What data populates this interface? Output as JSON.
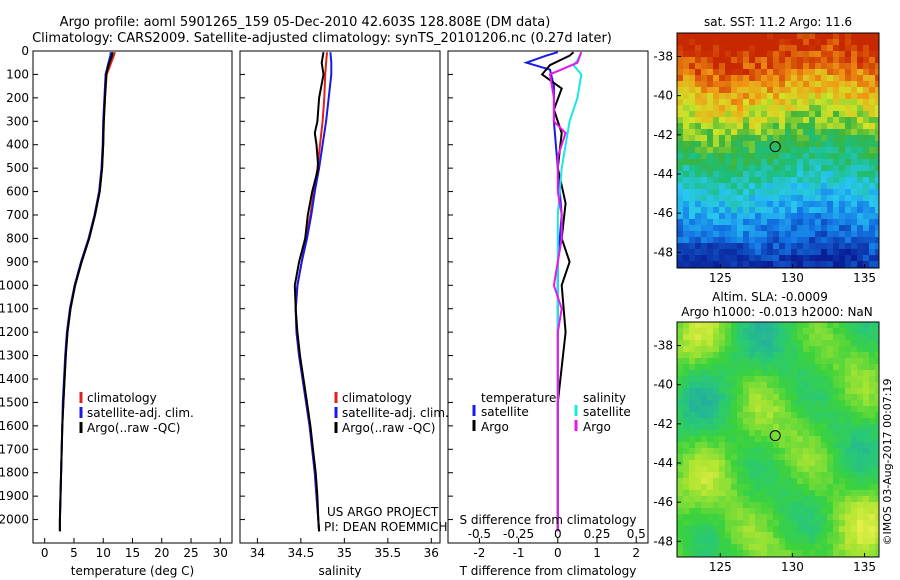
{
  "header": {
    "title_line1": "Argo profile: aoml 5901265_159 05-Dec-2010 42.603S 128.808E (DM data)",
    "title_line2": "Climatology: CARS2009. Satellite-adjusted climatology: synTS_20101206.nc (0.27d later)"
  },
  "colors": {
    "climatology": "#e0201a",
    "satellite": "#1a1ae6",
    "argo": "#000000",
    "sat_salinity": "#19e6e6",
    "argo_salinity": "#e619e6"
  },
  "chart_data": [
    {
      "type": "line",
      "id": "temperature",
      "xlabel": "temperature (deg C)",
      "ylabel": "",
      "xlim": [
        -2,
        32
      ],
      "ylim": [
        2100,
        0
      ],
      "xticks": [
        0,
        5,
        10,
        15,
        20,
        25,
        30
      ],
      "yticks": [
        0,
        100,
        200,
        300,
        400,
        500,
        600,
        700,
        800,
        900,
        1000,
        1100,
        1200,
        1300,
        1400,
        1500,
        1600,
        1700,
        1800,
        1900,
        2000
      ],
      "legend": [
        "climatology",
        "satellite-adj. clim.",
        "Argo(..raw -QC)"
      ],
      "series": [
        {
          "name": "climatology",
          "color": "climatology",
          "points": [
            [
              12.0,
              5
            ],
            [
              11.8,
              20
            ],
            [
              11.5,
              40
            ],
            [
              11.2,
              60
            ],
            [
              10.6,
              100
            ],
            [
              10.3,
              200
            ],
            [
              10.1,
              300
            ],
            [
              10.0,
              400
            ],
            [
              9.8,
              500
            ],
            [
              9.4,
              600
            ],
            [
              8.6,
              700
            ],
            [
              7.6,
              800
            ],
            [
              6.3,
              900
            ],
            [
              5.2,
              1000
            ],
            [
              4.4,
              1100
            ],
            [
              3.9,
              1200
            ],
            [
              3.6,
              1300
            ],
            [
              3.4,
              1400
            ],
            [
              3.2,
              1500
            ],
            [
              3.0,
              1600
            ],
            [
              2.9,
              1700
            ],
            [
              2.8,
              1800
            ],
            [
              2.7,
              1900
            ],
            [
              2.6,
              2000
            ],
            [
              2.6,
              2050
            ]
          ]
        },
        {
          "name": "satellite-adj. clim.",
          "color": "satellite",
          "points": [
            [
              11.3,
              5
            ],
            [
              11.2,
              20
            ],
            [
              11.0,
              40
            ],
            [
              10.8,
              60
            ],
            [
              10.4,
              100
            ],
            [
              10.2,
              200
            ],
            [
              10.0,
              300
            ],
            [
              9.9,
              400
            ],
            [
              9.7,
              500
            ],
            [
              9.3,
              600
            ],
            [
              8.5,
              700
            ],
            [
              7.5,
              800
            ],
            [
              6.2,
              900
            ],
            [
              5.1,
              1000
            ],
            [
              4.3,
              1100
            ],
            [
              3.8,
              1200
            ],
            [
              3.5,
              1300
            ],
            [
              3.3,
              1400
            ],
            [
              3.1,
              1500
            ],
            [
              3.0,
              1600
            ],
            [
              2.9,
              1700
            ],
            [
              2.8,
              1800
            ],
            [
              2.7,
              1900
            ],
            [
              2.6,
              2000
            ],
            [
              2.6,
              2050
            ]
          ]
        },
        {
          "name": "Argo(..raw -QC)",
          "color": "argo",
          "points": [
            [
              11.6,
              5
            ],
            [
              11.5,
              20
            ],
            [
              11.2,
              40
            ],
            [
              10.9,
              60
            ],
            [
              10.5,
              100
            ],
            [
              10.3,
              200
            ],
            [
              10.1,
              300
            ],
            [
              10.0,
              400
            ],
            [
              9.8,
              500
            ],
            [
              9.4,
              600
            ],
            [
              8.6,
              700
            ],
            [
              7.6,
              800
            ],
            [
              6.3,
              900
            ],
            [
              5.2,
              1000
            ],
            [
              4.4,
              1100
            ],
            [
              3.9,
              1200
            ],
            [
              3.6,
              1300
            ],
            [
              3.4,
              1400
            ],
            [
              3.2,
              1500
            ],
            [
              3.0,
              1600
            ],
            [
              2.9,
              1700
            ],
            [
              2.8,
              1800
            ],
            [
              2.7,
              1900
            ],
            [
              2.6,
              2000
            ],
            [
              2.6,
              2050
            ]
          ]
        }
      ]
    },
    {
      "type": "line",
      "id": "salinity",
      "xlabel": "salinity",
      "xlim": [
        33.8,
        36.1
      ],
      "ylim": [
        2100,
        0
      ],
      "xticks": [
        34,
        34.5,
        35,
        35.5,
        36
      ],
      "legend": [
        "climatology",
        "satellite-adj. clim.",
        "Argo(..raw -QC)"
      ],
      "annotation": [
        "US ARGO PROJECT",
        "PI: DEAN ROEMMICH"
      ],
      "series": [
        {
          "name": "climatology",
          "color": "climatology",
          "points": [
            [
              34.8,
              5
            ],
            [
              34.79,
              50
            ],
            [
              34.78,
              100
            ],
            [
              34.77,
              200
            ],
            [
              34.75,
              300
            ],
            [
              34.72,
              400
            ],
            [
              34.69,
              500
            ],
            [
              34.65,
              600
            ],
            [
              34.61,
              700
            ],
            [
              34.56,
              800
            ],
            [
              34.51,
              900
            ],
            [
              34.46,
              1000
            ],
            [
              34.44,
              1100
            ],
            [
              34.45,
              1200
            ],
            [
              34.48,
              1300
            ],
            [
              34.52,
              1400
            ],
            [
              34.56,
              1500
            ],
            [
              34.6,
              1600
            ],
            [
              34.63,
              1700
            ],
            [
              34.66,
              1800
            ],
            [
              34.68,
              1900
            ],
            [
              34.7,
              2000
            ],
            [
              34.71,
              2050
            ]
          ]
        },
        {
          "name": "satellite-adj. clim.",
          "color": "satellite",
          "points": [
            [
              34.84,
              5
            ],
            [
              34.85,
              50
            ],
            [
              34.85,
              100
            ],
            [
              34.82,
              200
            ],
            [
              34.79,
              300
            ],
            [
              34.75,
              400
            ],
            [
              34.71,
              500
            ],
            [
              34.66,
              600
            ],
            [
              34.62,
              700
            ],
            [
              34.57,
              800
            ],
            [
              34.51,
              900
            ],
            [
              34.46,
              1000
            ],
            [
              34.44,
              1100
            ],
            [
              34.45,
              1200
            ],
            [
              34.48,
              1300
            ],
            [
              34.52,
              1400
            ],
            [
              34.56,
              1500
            ],
            [
              34.6,
              1600
            ],
            [
              34.63,
              1700
            ],
            [
              34.66,
              1800
            ],
            [
              34.68,
              1900
            ],
            [
              34.7,
              2000
            ],
            [
              34.71,
              2050
            ]
          ]
        },
        {
          "name": "Argo(..raw -QC)",
          "color": "argo",
          "points": [
            [
              34.76,
              5
            ],
            [
              34.74,
              50
            ],
            [
              34.76,
              100
            ],
            [
              34.71,
              200
            ],
            [
              34.69,
              300
            ],
            [
              34.66,
              350
            ],
            [
              34.68,
              400
            ],
            [
              34.7,
              500
            ],
            [
              34.63,
              600
            ],
            [
              34.58,
              700
            ],
            [
              34.55,
              800
            ],
            [
              34.48,
              900
            ],
            [
              34.43,
              1000
            ],
            [
              34.44,
              1100
            ],
            [
              34.46,
              1200
            ],
            [
              34.49,
              1300
            ],
            [
              34.53,
              1400
            ],
            [
              34.57,
              1500
            ],
            [
              34.61,
              1600
            ],
            [
              34.64,
              1700
            ],
            [
              34.67,
              1800
            ],
            [
              34.69,
              1900
            ],
            [
              34.7,
              2000
            ],
            [
              34.71,
              2050
            ]
          ]
        }
      ]
    },
    {
      "type": "line",
      "id": "difference",
      "xlabel": "T difference from climatology",
      "xlabel_top": "S difference from climatology",
      "xlim": [
        -2.8,
        2.3
      ],
      "ylim": [
        2100,
        0
      ],
      "xticks": [
        -2,
        -1,
        0,
        1,
        2
      ],
      "xtick_labels_top": [
        "-0.5",
        "-0.25",
        "0",
        "0.25",
        "0.5"
      ],
      "xticks_top": [
        -2,
        -1,
        0,
        1,
        2
      ],
      "legend_headers": [
        "temperature",
        "salinity"
      ],
      "legend": [
        "satellite",
        "Argo",
        "satellite",
        "Argo"
      ],
      "series": [
        {
          "name": "T satellite",
          "color": "satellite",
          "points": [
            [
              0.0,
              5
            ],
            [
              -0.3,
              20
            ],
            [
              -0.8,
              50
            ],
            [
              -0.2,
              80
            ],
            [
              -0.1,
              150
            ],
            [
              -0.1,
              300
            ],
            [
              0.0,
              500
            ],
            [
              0.1,
              700
            ],
            [
              0.0,
              900
            ],
            [
              0.0,
              1100
            ],
            [
              0.0,
              1300
            ],
            [
              0.0,
              1500
            ],
            [
              0.0,
              2050
            ]
          ]
        },
        {
          "name": "T Argo",
          "color": "argo",
          "points": [
            [
              0.4,
              5
            ],
            [
              0.3,
              20
            ],
            [
              -0.2,
              60
            ],
            [
              -0.4,
              100
            ],
            [
              0.1,
              160
            ],
            [
              -0.1,
              250
            ],
            [
              0.1,
              350
            ],
            [
              0.0,
              500
            ],
            [
              0.2,
              650
            ],
            [
              0.1,
              800
            ],
            [
              0.3,
              900
            ],
            [
              0.1,
              1000
            ],
            [
              0.2,
              1200
            ],
            [
              0.0,
              1500
            ],
            [
              0.0,
              2050
            ]
          ]
        },
        {
          "name": "S satellite",
          "color": "sat_salinity",
          "points": [
            [
              0.6,
              5
            ],
            [
              0.5,
              40
            ],
            [
              0.4,
              60
            ],
            [
              0.6,
              100
            ],
            [
              0.5,
              200
            ],
            [
              0.3,
              300
            ],
            [
              0.1,
              500
            ],
            [
              0.0,
              700
            ],
            [
              0.0,
              900
            ],
            [
              0.0,
              1100
            ],
            [
              0.0,
              1300
            ],
            [
              0.0,
              1500
            ],
            [
              0.0,
              1800
            ],
            [
              0.0,
              2050
            ]
          ]
        },
        {
          "name": "S Argo",
          "color": "argo_salinity",
          "points": [
            [
              0.6,
              5
            ],
            [
              0.5,
              50
            ],
            [
              -0.2,
              100
            ],
            [
              -0.1,
              200
            ],
            [
              -0.1,
              300
            ],
            [
              0.2,
              350
            ],
            [
              0.0,
              450
            ],
            [
              0.0,
              600
            ],
            [
              0.1,
              700
            ],
            [
              0.1,
              800
            ],
            [
              0.0,
              900
            ],
            [
              -0.1,
              1000
            ],
            [
              0.1,
              1100
            ],
            [
              0.0,
              1200
            ],
            [
              0.0,
              1500
            ],
            [
              0.0,
              2050
            ]
          ]
        }
      ]
    },
    {
      "type": "heatmap",
      "id": "sst_map",
      "title": "sat. SST: 11.2  Argo: 11.6",
      "xlim": [
        122,
        136
      ],
      "ylim": [
        -48.8,
        -36.8
      ],
      "xticks": [
        125,
        130,
        135
      ],
      "yticks": [
        -38,
        -40,
        -42,
        -44,
        -46,
        -48
      ],
      "marker": [
        128.808,
        -42.603
      ]
    },
    {
      "type": "heatmap",
      "id": "sla_map",
      "title_line1": "Altim. SLA: -0.0009",
      "title_line2": "Argo h1000: -0.013  h2000: NaN",
      "xlim": [
        122,
        136
      ],
      "ylim": [
        -48.8,
        -36.8
      ],
      "xticks": [
        125,
        130,
        135
      ],
      "yticks": [
        -38,
        -40,
        -42,
        -44,
        -46,
        -48
      ],
      "marker": [
        128.808,
        -42.603
      ]
    }
  ],
  "credit": "©IMOS 03-Aug-2017 00:07:19"
}
